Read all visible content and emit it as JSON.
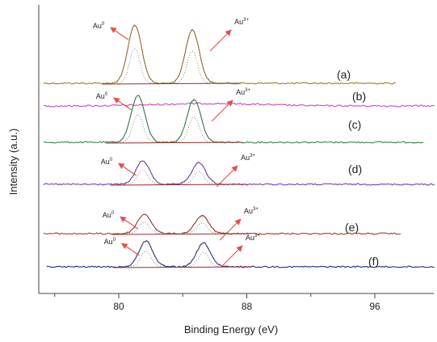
{
  "chart_data": {
    "type": "line",
    "title": "",
    "xlabel": "Binding Energy (eV)",
    "ylabel": "Intensity (a.u.)",
    "xlim": [
      76,
      101
    ],
    "xticks": [
      80,
      88,
      96
    ],
    "y_tick_labels": "none",
    "grid": false,
    "legend": "none",
    "peak_positions_eV": [
      81.0,
      84.6
    ],
    "series": [
      {
        "name": "(a)",
        "color": "#a8781e",
        "x_range": [
          72.0,
          97.4
        ],
        "peaks": [
          81.0,
          84.6
        ],
        "amplitude": 1.0,
        "labels": [
          {
            "base": "Au",
            "sup": "0"
          },
          {
            "base": "Au",
            "sup": "3+"
          }
        ]
      },
      {
        "name": "(b)",
        "color": "#c84ac8",
        "x_range": [
          74.0,
          100.5
        ],
        "peaks": [],
        "amplitude": 0.0,
        "labels": []
      },
      {
        "name": "(c)",
        "color": "#2f8a4a",
        "x_range": [
          73.5,
          99.1
        ],
        "peaks": [
          81.2,
          84.7
        ],
        "amplitude": 0.85,
        "labels": [
          {
            "base": "Au",
            "sup": "0"
          },
          {
            "base": "Au",
            "sup": "3+"
          }
        ]
      },
      {
        "name": "(d)",
        "color": "#7b3db8",
        "x_range": [
          73.0,
          100.0
        ],
        "peaks": [
          81.5,
          85.0
        ],
        "amplitude": 0.6,
        "labels": [
          {
            "base": "Au",
            "sup": "0"
          },
          {
            "base": "Au",
            "sup": "3+"
          }
        ]
      },
      {
        "name": "(e)",
        "color": "#b03428",
        "x_range": [
          72.5,
          97.7
        ],
        "peaks": [
          81.6,
          85.2
        ],
        "amplitude": 0.55,
        "labels": [
          {
            "base": "Au",
            "sup": "0"
          },
          {
            "base": "Au",
            "sup": "3+"
          }
        ]
      },
      {
        "name": "(f)",
        "color": "#1f2f80",
        "x_range": [
          75.5,
          101.0
        ],
        "peaks": [
          81.7,
          85.3
        ],
        "amplitude": 0.7,
        "labels": [
          {
            "base": "Au",
            "sup": "0"
          },
          {
            "base": "Au",
            "sup": "3+"
          }
        ]
      }
    ]
  },
  "colors": {
    "axis": "#444444",
    "arrow": "#e05050",
    "fit_dots": "#555555",
    "baseline": "#9a2a2a"
  }
}
